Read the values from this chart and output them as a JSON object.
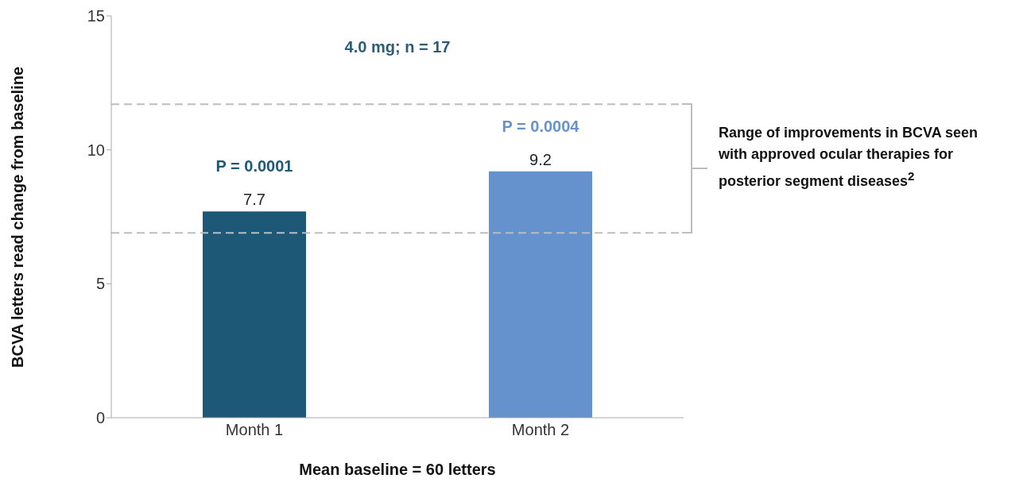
{
  "chart_data": {
    "type": "bar",
    "title": "4.0 mg; n = 17",
    "xlabel": "Mean baseline = 60 letters",
    "ylabel": "BCVA letters read change from baseline",
    "categories": [
      "Month 1",
      "Month 2"
    ],
    "values": [
      7.7,
      9.2
    ],
    "colors": [
      "#1d5877",
      "#6592cc"
    ],
    "ylim": [
      0,
      15
    ],
    "yticks": [
      0,
      5,
      10,
      15
    ],
    "grid": false,
    "data_labels": true,
    "ref_lines": [
      {
        "axis": "y",
        "value": 11.7,
        "color": "#bdbdbd",
        "line_style": "dashed",
        "label": "Range of improvements in BCVA seen with approved ocular therapies for posterior segment diseases$^{2}$"
      },
      {
        "axis": "y",
        "value": 6.9,
        "color": "#bdbdbd",
        "line_style": "dashed"
      }
    ],
    "annotations": [
      "P = 0.0001",
      "P = 0.0004"
    ]
  }
}
